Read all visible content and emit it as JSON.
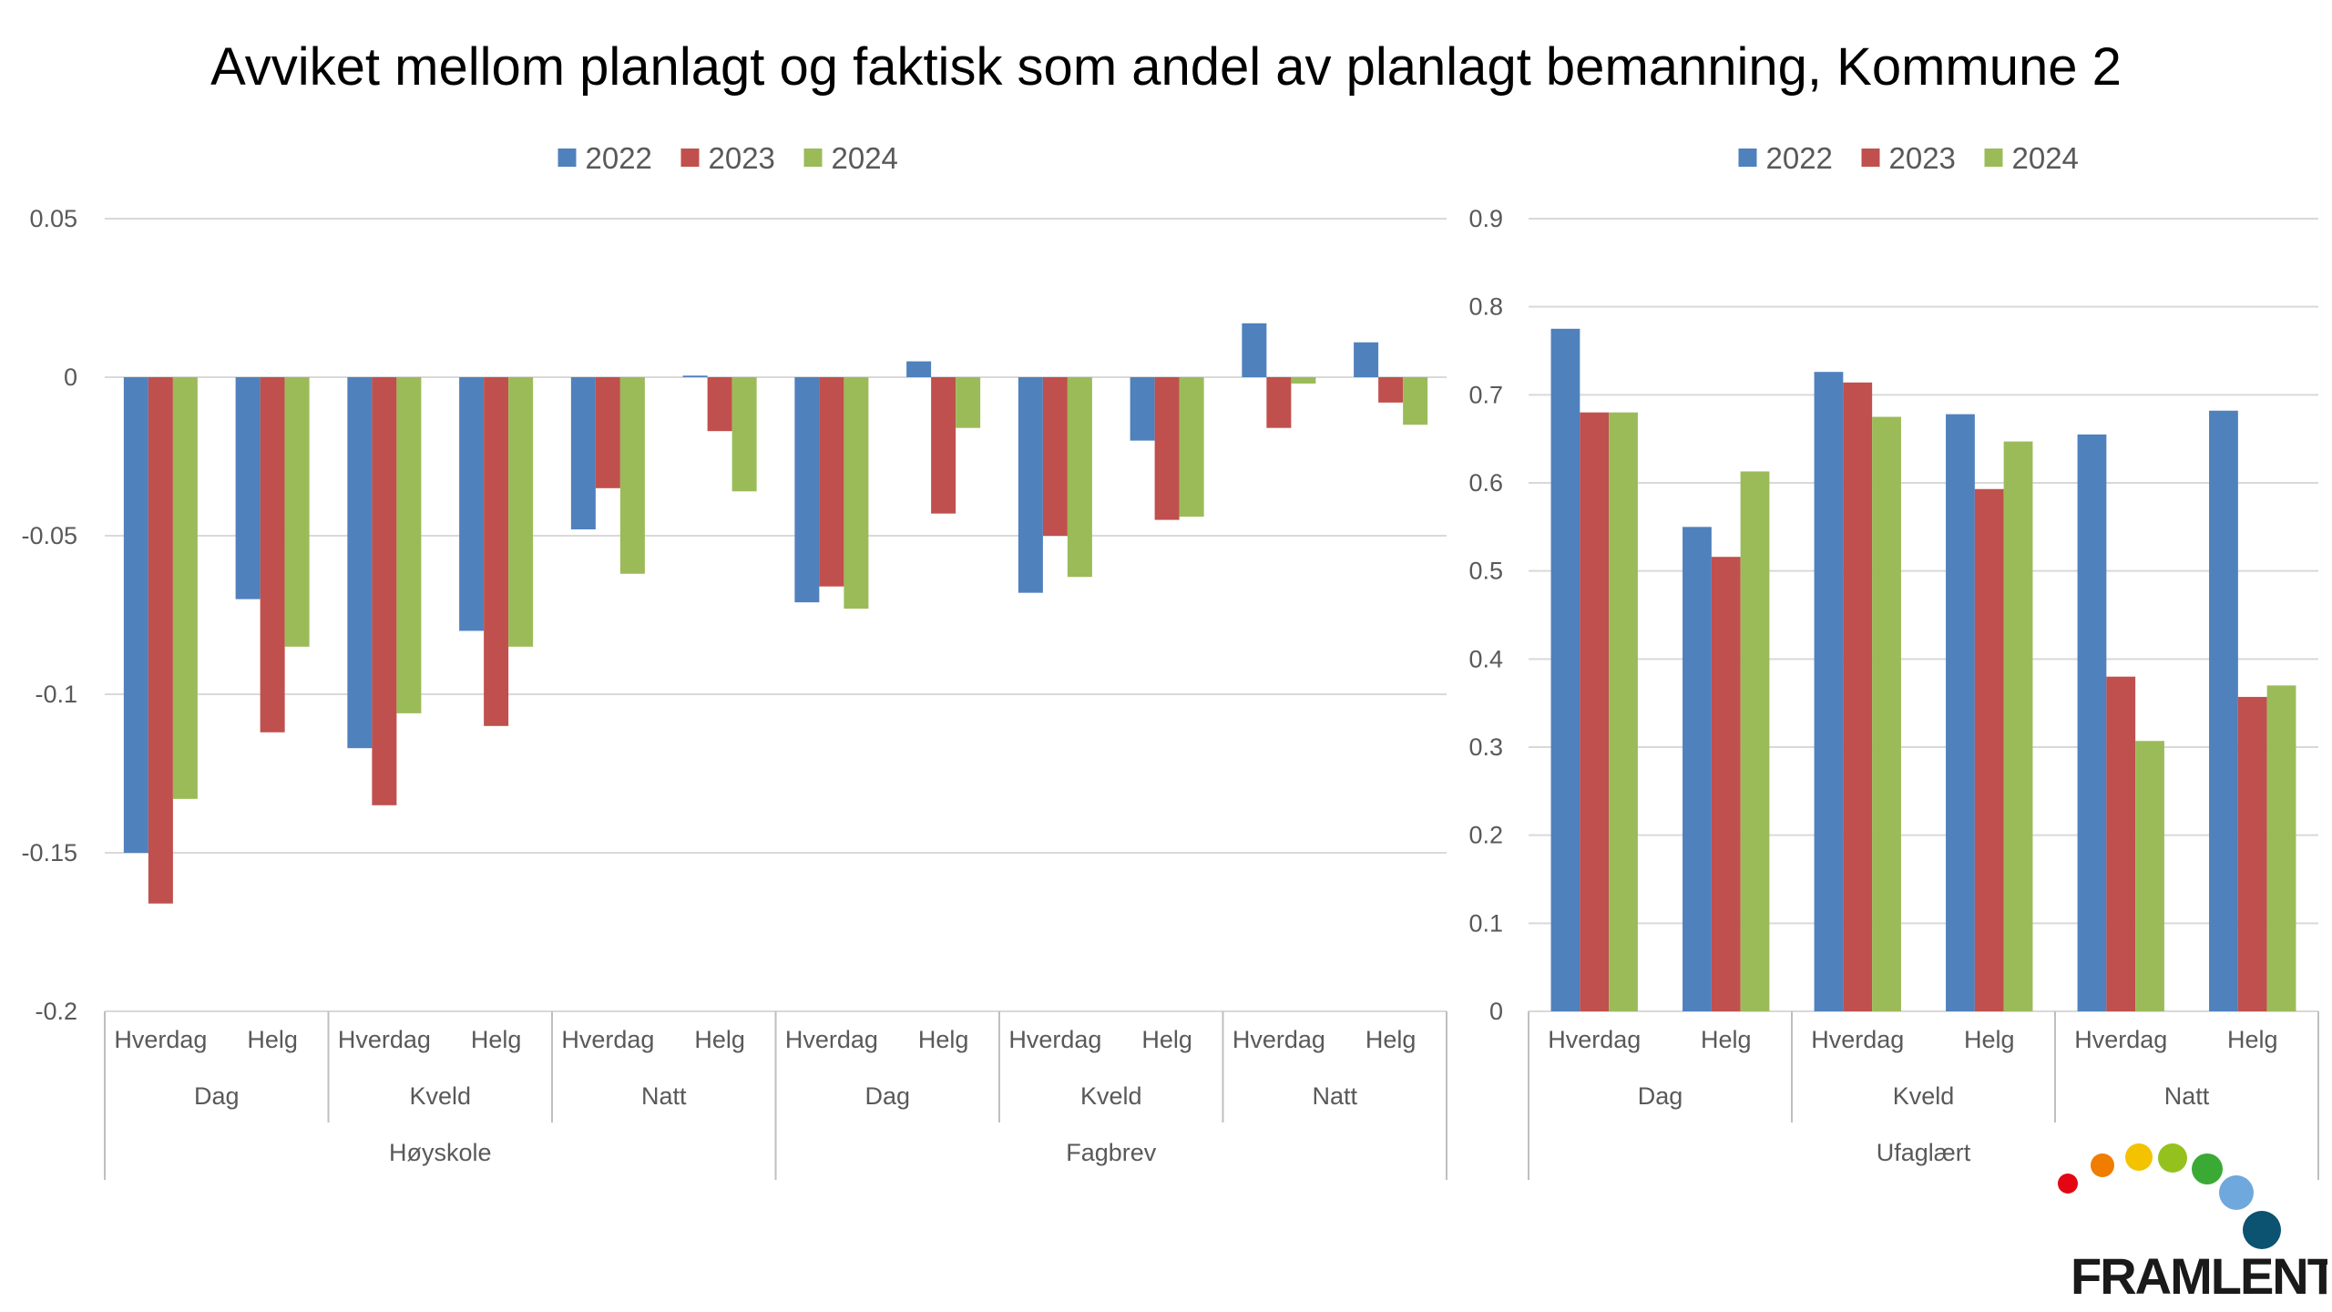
{
  "title": "Avviket mellom planlagt og faktisk som andel av planlagt bemanning, Kommune 2",
  "colors": {
    "2022": "#4F81BD",
    "2023": "#C0504D",
    "2024": "#9BBB59",
    "grid": "#D9D9D9",
    "axis": "#BFBFBF"
  },
  "logo": {
    "text": "FRAMLENT",
    "dot_colors": [
      "#E30613",
      "#F07D00",
      "#F4C300",
      "#95C11F",
      "#3AAA35",
      "#6FA8DC",
      "#0B5370"
    ]
  },
  "chart_data": [
    {
      "type": "bar",
      "legend": [
        "2022",
        "2023",
        "2024"
      ],
      "legend_position": "top",
      "ylim": [
        -0.2,
        0.05
      ],
      "yticks": [
        0.05,
        0,
        -0.05,
        -0.1,
        -0.15,
        -0.2
      ],
      "ytick_labels": [
        "0.05",
        "0",
        "-0.05",
        "-0.1",
        "-0.15",
        "-0.2"
      ],
      "grid": true,
      "categories": [
        "Hverdag",
        "Helg",
        "Hverdag",
        "Helg",
        "Hverdag",
        "Helg",
        "Hverdag",
        "Helg",
        "Hverdag",
        "Helg",
        "Hverdag",
        "Helg"
      ],
      "groups_level2": [
        {
          "label": "Dag",
          "span": 2
        },
        {
          "label": "Kveld",
          "span": 2
        },
        {
          "label": "Natt",
          "span": 2
        },
        {
          "label": "Dag",
          "span": 2
        },
        {
          "label": "Kveld",
          "span": 2
        },
        {
          "label": "Natt",
          "span": 2
        }
      ],
      "groups_level3": [
        {
          "label": "Høyskole",
          "span": 6
        },
        {
          "label": "Fagbrev",
          "span": 6
        }
      ],
      "series": [
        {
          "name": "2022",
          "values": [
            -0.15,
            -0.07,
            -0.117,
            -0.08,
            -0.048,
            0.0005,
            -0.071,
            0.005,
            -0.068,
            -0.02,
            0.017,
            0.011
          ]
        },
        {
          "name": "2023",
          "values": [
            -0.166,
            -0.112,
            -0.135,
            -0.11,
            -0.035,
            -0.017,
            -0.066,
            -0.043,
            -0.05,
            -0.045,
            -0.016,
            -0.008
          ]
        },
        {
          "name": "2024",
          "values": [
            -0.133,
            -0.085,
            -0.106,
            -0.085,
            -0.062,
            -0.036,
            -0.073,
            -0.016,
            -0.063,
            -0.044,
            -0.002,
            -0.015
          ]
        }
      ]
    },
    {
      "type": "bar",
      "legend": [
        "2022",
        "2023",
        "2024"
      ],
      "legend_position": "top",
      "ylim": [
        0,
        0.9
      ],
      "yticks": [
        0.9,
        0.8,
        0.7,
        0.6,
        0.5,
        0.4,
        0.3,
        0.2,
        0.1,
        0
      ],
      "ytick_labels": [
        "0.9",
        "0.8",
        "0.7",
        "0.6",
        "0.5",
        "0.4",
        "0.3",
        "0.2",
        "0.1",
        "0"
      ],
      "grid": true,
      "categories": [
        "Hverdag",
        "Helg",
        "Hverdag",
        "Helg",
        "Hverdag",
        "Helg"
      ],
      "groups_level2": [
        {
          "label": "Dag",
          "span": 2
        },
        {
          "label": "Kveld",
          "span": 2
        },
        {
          "label": "Natt",
          "span": 2
        }
      ],
      "groups_level3": [
        {
          "label": "Ufaglært",
          "span": 6
        }
      ],
      "series": [
        {
          "name": "2022",
          "values": [
            0.775,
            0.55,
            0.726,
            0.678,
            0.655,
            0.682
          ]
        },
        {
          "name": "2023",
          "values": [
            0.68,
            0.516,
            0.714,
            0.593,
            0.38,
            0.357
          ]
        },
        {
          "name": "2024",
          "values": [
            0.68,
            0.613,
            0.675,
            0.647,
            0.307,
            0.37
          ]
        }
      ]
    }
  ]
}
